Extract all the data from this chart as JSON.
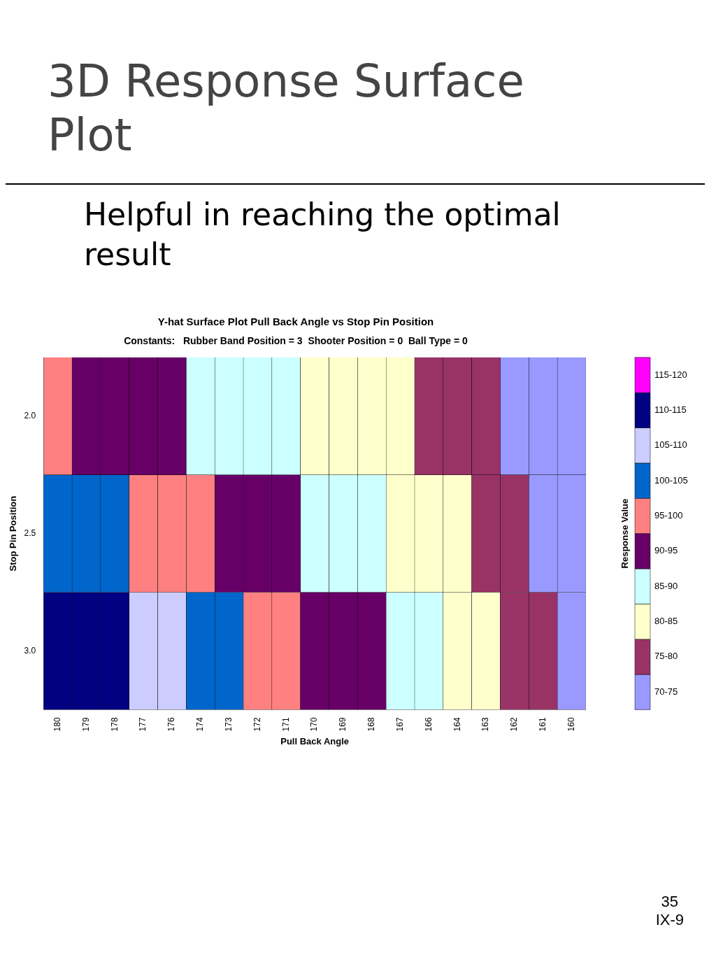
{
  "chart_data": {
    "type": "heatmap",
    "title": "Y-hat Surface Plot Pull Back Angle vs Stop Pin Position",
    "subtitle": "Constants:   Rubber Band Position = 3  Shooter Position = 0  Ball Type = 0",
    "xlabel": "Pull Back Angle",
    "ylabel": "Stop Pin Position",
    "clabel": "Response Value",
    "categories": [
      "180",
      "179",
      "178",
      "177",
      "176",
      "174",
      "173",
      "172",
      "171",
      "170",
      "169",
      "168",
      "167",
      "166",
      "164",
      "163",
      "162",
      "161",
      "160"
    ],
    "y_categories": [
      "2.0",
      "2.5",
      "3.0"
    ],
    "cells": [
      [
        95,
        94,
        92,
        91,
        90,
        89,
        87,
        86,
        85,
        84,
        82,
        81,
        80,
        78,
        77,
        76,
        74,
        73,
        72
      ],
      [
        104,
        103,
        101,
        99,
        97,
        96,
        94,
        92,
        90,
        89,
        87,
        85,
        83,
        81,
        80,
        78,
        76,
        74,
        73
      ],
      [
        114,
        112,
        110,
        107,
        105,
        103,
        101,
        98,
        96,
        94,
        92,
        90,
        87,
        85,
        83,
        81,
        78,
        76,
        74
      ]
    ],
    "clim": [
      70,
      120
    ],
    "cticks": [
      {
        "value": 72.5,
        "label": "70-75"
      },
      {
        "value": 77.5,
        "label": "75-80"
      },
      {
        "value": 82.5,
        "label": "80-85"
      },
      {
        "value": 87.5,
        "label": "85-90"
      },
      {
        "value": 92.5,
        "label": "90-95"
      },
      {
        "value": 97.5,
        "label": "95-100"
      },
      {
        "value": 102.5,
        "label": "100-105"
      },
      {
        "value": 107.5,
        "label": "105-110"
      },
      {
        "value": 112.5,
        "label": "110-115"
      },
      {
        "value": 117.5,
        "label": "115-120"
      }
    ],
    "colors": [
      "#9999ff",
      "#993366",
      "#ffffcc",
      "#ccffff",
      "#660066",
      "#ff8080",
      "#0066cc",
      "#ccccff",
      "#000080",
      "#ff00ff"
    ],
    "annotations": [
      "3D Response Surface Plot",
      "Helpful in reaching the optimal result",
      "35",
      "IX-9"
    ]
  }
}
